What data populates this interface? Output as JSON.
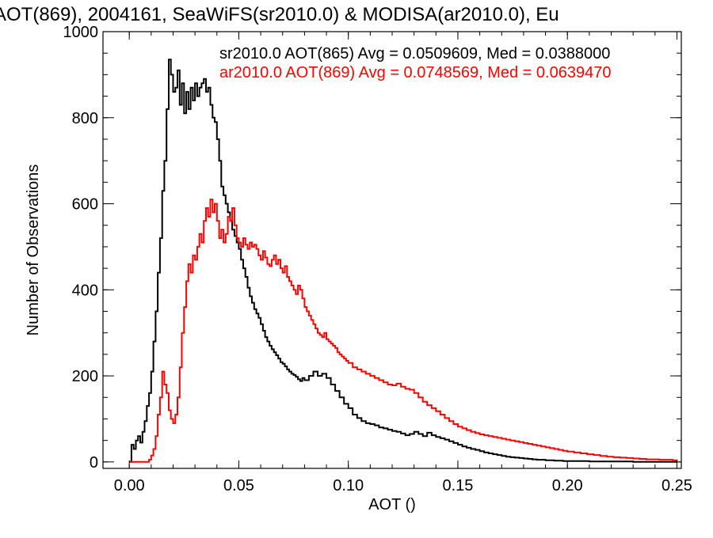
{
  "chart_data": {
    "type": "line",
    "title": "AOT(869), 2004161, SeaWiFS(sr2010.0) & MODISA(ar2010.0), Eu",
    "xlabel": "AOT ()",
    "ylabel": "Number of Observations",
    "xlim": [
      -0.012,
      0.252
    ],
    "ylim": [
      -15,
      1000
    ],
    "x_ticks": [
      {
        "v": 0.0,
        "label": "0.00"
      },
      {
        "v": 0.05,
        "label": "0.05"
      },
      {
        "v": 0.1,
        "label": "0.10"
      },
      {
        "v": 0.15,
        "label": "0.15"
      },
      {
        "v": 0.2,
        "label": "0.20"
      },
      {
        "v": 0.25,
        "label": "0.25"
      }
    ],
    "y_ticks": [
      {
        "v": 0,
        "label": "0"
      },
      {
        "v": 200,
        "label": "200"
      },
      {
        "v": 400,
        "label": "400"
      },
      {
        "v": 600,
        "label": "600"
      },
      {
        "v": 800,
        "label": "800"
      },
      {
        "v": 1000,
        "label": "1000"
      }
    ],
    "grid": false,
    "legend_placement": "top-right",
    "series": [
      {
        "name": "sr2010.0 AOT(865) Avg = 0.0509609, Med = 0.0388000",
        "color": "#000000",
        "style": "step",
        "points": [
          [
            0.0,
            0
          ],
          [
            0.001,
            40
          ],
          [
            0.002,
            30
          ],
          [
            0.003,
            50
          ],
          [
            0.004,
            60
          ],
          [
            0.005,
            45
          ],
          [
            0.006,
            70
          ],
          [
            0.007,
            95
          ],
          [
            0.008,
            130
          ],
          [
            0.009,
            160
          ],
          [
            0.01,
            210
          ],
          [
            0.011,
            280
          ],
          [
            0.012,
            350
          ],
          [
            0.013,
            440
          ],
          [
            0.014,
            520
          ],
          [
            0.015,
            630
          ],
          [
            0.016,
            700
          ],
          [
            0.017,
            820
          ],
          [
            0.018,
            935
          ],
          [
            0.019,
            900
          ],
          [
            0.02,
            860
          ],
          [
            0.021,
            870
          ],
          [
            0.022,
            910
          ],
          [
            0.023,
            830
          ],
          [
            0.024,
            880
          ],
          [
            0.025,
            810
          ],
          [
            0.026,
            860
          ],
          [
            0.027,
            820
          ],
          [
            0.028,
            870
          ],
          [
            0.029,
            840
          ],
          [
            0.03,
            880
          ],
          [
            0.031,
            850
          ],
          [
            0.032,
            870
          ],
          [
            0.033,
            880
          ],
          [
            0.034,
            890
          ],
          [
            0.035,
            860
          ],
          [
            0.036,
            870
          ],
          [
            0.037,
            830
          ],
          [
            0.038,
            800
          ],
          [
            0.039,
            790
          ],
          [
            0.04,
            750
          ],
          [
            0.041,
            700
          ],
          [
            0.042,
            640
          ],
          [
            0.043,
            620
          ],
          [
            0.044,
            600
          ],
          [
            0.045,
            580
          ],
          [
            0.046,
            560
          ],
          [
            0.047,
            540
          ],
          [
            0.048,
            525
          ],
          [
            0.049,
            510
          ],
          [
            0.05,
            495
          ],
          [
            0.051,
            470
          ],
          [
            0.052,
            450
          ],
          [
            0.053,
            430
          ],
          [
            0.054,
            405
          ],
          [
            0.055,
            385
          ],
          [
            0.056,
            370
          ],
          [
            0.057,
            355
          ],
          [
            0.058,
            345
          ],
          [
            0.059,
            335
          ],
          [
            0.06,
            320
          ],
          [
            0.061,
            305
          ],
          [
            0.062,
            290
          ],
          [
            0.063,
            280
          ],
          [
            0.064,
            270
          ],
          [
            0.065,
            262
          ],
          [
            0.066,
            255
          ],
          [
            0.067,
            248
          ],
          [
            0.068,
            240
          ],
          [
            0.069,
            232
          ],
          [
            0.07,
            228
          ],
          [
            0.071,
            222
          ],
          [
            0.072,
            215
          ],
          [
            0.073,
            210
          ],
          [
            0.074,
            205
          ],
          [
            0.075,
            202
          ],
          [
            0.076,
            198
          ],
          [
            0.077,
            192
          ],
          [
            0.078,
            188
          ],
          [
            0.079,
            195
          ],
          [
            0.08,
            190
          ],
          [
            0.082,
            200
          ],
          [
            0.084,
            210
          ],
          [
            0.086,
            200
          ],
          [
            0.088,
            205
          ],
          [
            0.09,
            195
          ],
          [
            0.092,
            180
          ],
          [
            0.094,
            165
          ],
          [
            0.096,
            150
          ],
          [
            0.098,
            135
          ],
          [
            0.1,
            125
          ],
          [
            0.102,
            110
          ],
          [
            0.104,
            102
          ],
          [
            0.106,
            95
          ],
          [
            0.108,
            90
          ],
          [
            0.11,
            88
          ],
          [
            0.112,
            85
          ],
          [
            0.114,
            80
          ],
          [
            0.116,
            78
          ],
          [
            0.118,
            75
          ],
          [
            0.12,
            72
          ],
          [
            0.122,
            70
          ],
          [
            0.124,
            66
          ],
          [
            0.126,
            62
          ],
          [
            0.128,
            65
          ],
          [
            0.13,
            70
          ],
          [
            0.132,
            65
          ],
          [
            0.134,
            60
          ],
          [
            0.136,
            68
          ],
          [
            0.138,
            62
          ],
          [
            0.14,
            58
          ],
          [
            0.142,
            55
          ],
          [
            0.144,
            52
          ],
          [
            0.146,
            48
          ],
          [
            0.148,
            44
          ],
          [
            0.15,
            40
          ],
          [
            0.152,
            36
          ],
          [
            0.154,
            33
          ],
          [
            0.156,
            30
          ],
          [
            0.158,
            28
          ],
          [
            0.16,
            25
          ],
          [
            0.162,
            22
          ],
          [
            0.164,
            20
          ],
          [
            0.166,
            18
          ],
          [
            0.168,
            16
          ],
          [
            0.17,
            14
          ],
          [
            0.172,
            12
          ],
          [
            0.174,
            11
          ],
          [
            0.176,
            10
          ],
          [
            0.178,
            9
          ],
          [
            0.18,
            8
          ],
          [
            0.182,
            7
          ],
          [
            0.184,
            6
          ],
          [
            0.186,
            5
          ],
          [
            0.188,
            5
          ],
          [
            0.19,
            4
          ],
          [
            0.192,
            4
          ],
          [
            0.194,
            3
          ],
          [
            0.196,
            3
          ],
          [
            0.198,
            2
          ],
          [
            0.2,
            2
          ],
          [
            0.205,
            2
          ],
          [
            0.21,
            1
          ],
          [
            0.215,
            1
          ],
          [
            0.22,
            1
          ],
          [
            0.225,
            1
          ],
          [
            0.23,
            0
          ],
          [
            0.24,
            0
          ],
          [
            0.25,
            0
          ]
        ]
      },
      {
        "name": "ar2010.0 AOT(869) Avg = 0.0748569, Med = 0.0639470",
        "color": "#ff0000",
        "style": "step",
        "points": [
          [
            0.0,
            0
          ],
          [
            0.004,
            0
          ],
          [
            0.008,
            0
          ],
          [
            0.009,
            5
          ],
          [
            0.01,
            15
          ],
          [
            0.011,
            30
          ],
          [
            0.012,
            60
          ],
          [
            0.013,
            110
          ],
          [
            0.014,
            150
          ],
          [
            0.015,
            210
          ],
          [
            0.016,
            180
          ],
          [
            0.017,
            160
          ],
          [
            0.018,
            120
          ],
          [
            0.019,
            100
          ],
          [
            0.02,
            90
          ],
          [
            0.021,
            110
          ],
          [
            0.022,
            150
          ],
          [
            0.023,
            220
          ],
          [
            0.024,
            300
          ],
          [
            0.025,
            360
          ],
          [
            0.026,
            420
          ],
          [
            0.027,
            460
          ],
          [
            0.028,
            440
          ],
          [
            0.029,
            480
          ],
          [
            0.03,
            470
          ],
          [
            0.031,
            500
          ],
          [
            0.032,
            530
          ],
          [
            0.033,
            510
          ],
          [
            0.034,
            560
          ],
          [
            0.035,
            590
          ],
          [
            0.036,
            570
          ],
          [
            0.037,
            610
          ],
          [
            0.038,
            580
          ],
          [
            0.039,
            600
          ],
          [
            0.04,
            560
          ],
          [
            0.041,
            520
          ],
          [
            0.042,
            540
          ],
          [
            0.043,
            510
          ],
          [
            0.044,
            530
          ],
          [
            0.045,
            570
          ],
          [
            0.046,
            560
          ],
          [
            0.047,
            590
          ],
          [
            0.048,
            550
          ],
          [
            0.049,
            520
          ],
          [
            0.05,
            510
          ],
          [
            0.051,
            500
          ],
          [
            0.052,
            520
          ],
          [
            0.053,
            505
          ],
          [
            0.054,
            495
          ],
          [
            0.055,
            510
          ],
          [
            0.056,
            500
          ],
          [
            0.057,
            505
          ],
          [
            0.058,
            495
          ],
          [
            0.059,
            480
          ],
          [
            0.06,
            470
          ],
          [
            0.061,
            490
          ],
          [
            0.062,
            475
          ],
          [
            0.063,
            460
          ],
          [
            0.064,
            455
          ],
          [
            0.065,
            470
          ],
          [
            0.066,
            480
          ],
          [
            0.067,
            460
          ],
          [
            0.068,
            470
          ],
          [
            0.069,
            450
          ],
          [
            0.07,
            440
          ],
          [
            0.071,
            455
          ],
          [
            0.072,
            430
          ],
          [
            0.073,
            420
          ],
          [
            0.074,
            410
          ],
          [
            0.075,
            400
          ],
          [
            0.076,
            390
          ],
          [
            0.077,
            410
          ],
          [
            0.078,
            400
          ],
          [
            0.079,
            380
          ],
          [
            0.08,
            360
          ],
          [
            0.081,
            350
          ],
          [
            0.082,
            340
          ],
          [
            0.083,
            330
          ],
          [
            0.084,
            320
          ],
          [
            0.085,
            310
          ],
          [
            0.086,
            300
          ],
          [
            0.087,
            295
          ],
          [
            0.088,
            290
          ],
          [
            0.089,
            300
          ],
          [
            0.09,
            285
          ],
          [
            0.091,
            280
          ],
          [
            0.092,
            275
          ],
          [
            0.093,
            270
          ],
          [
            0.094,
            265
          ],
          [
            0.095,
            255
          ],
          [
            0.096,
            250
          ],
          [
            0.097,
            245
          ],
          [
            0.098,
            240
          ],
          [
            0.099,
            235
          ],
          [
            0.1,
            230
          ],
          [
            0.102,
            220
          ],
          [
            0.104,
            215
          ],
          [
            0.106,
            210
          ],
          [
            0.108,
            205
          ],
          [
            0.11,
            200
          ],
          [
            0.112,
            195
          ],
          [
            0.114,
            190
          ],
          [
            0.116,
            185
          ],
          [
            0.118,
            180
          ],
          [
            0.12,
            178
          ],
          [
            0.122,
            182
          ],
          [
            0.124,
            175
          ],
          [
            0.126,
            170
          ],
          [
            0.128,
            168
          ],
          [
            0.13,
            160
          ],
          [
            0.132,
            150
          ],
          [
            0.134,
            140
          ],
          [
            0.136,
            132
          ],
          [
            0.138,
            125
          ],
          [
            0.14,
            118
          ],
          [
            0.142,
            110
          ],
          [
            0.144,
            102
          ],
          [
            0.146,
            95
          ],
          [
            0.148,
            88
          ],
          [
            0.15,
            82
          ],
          [
            0.152,
            78
          ],
          [
            0.154,
            74
          ],
          [
            0.156,
            70
          ],
          [
            0.158,
            67
          ],
          [
            0.16,
            64
          ],
          [
            0.162,
            62
          ],
          [
            0.164,
            60
          ],
          [
            0.166,
            58
          ],
          [
            0.168,
            56
          ],
          [
            0.17,
            54
          ],
          [
            0.172,
            52
          ],
          [
            0.174,
            50
          ],
          [
            0.176,
            48
          ],
          [
            0.178,
            46
          ],
          [
            0.18,
            44
          ],
          [
            0.182,
            42
          ],
          [
            0.184,
            40
          ],
          [
            0.186,
            38
          ],
          [
            0.188,
            36
          ],
          [
            0.19,
            34
          ],
          [
            0.192,
            32
          ],
          [
            0.194,
            30
          ],
          [
            0.196,
            28
          ],
          [
            0.198,
            26
          ],
          [
            0.2,
            24
          ],
          [
            0.203,
            22
          ],
          [
            0.206,
            20
          ],
          [
            0.209,
            18
          ],
          [
            0.212,
            16
          ],
          [
            0.215,
            14
          ],
          [
            0.218,
            12
          ],
          [
            0.221,
            11
          ],
          [
            0.224,
            10
          ],
          [
            0.227,
            9
          ],
          [
            0.23,
            8
          ],
          [
            0.233,
            7
          ],
          [
            0.236,
            6
          ],
          [
            0.239,
            6
          ],
          [
            0.242,
            5
          ],
          [
            0.245,
            5
          ],
          [
            0.248,
            4
          ],
          [
            0.25,
            3
          ]
        ]
      }
    ]
  }
}
